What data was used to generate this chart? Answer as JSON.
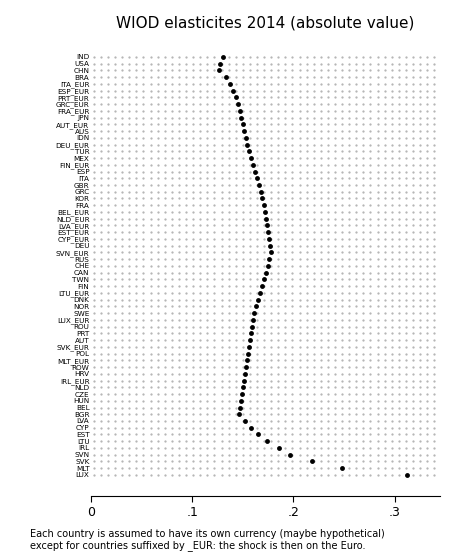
{
  "title": "WIOD elasticites 2014 (absolute value)",
  "footnote": "Each country is assumed to have its own currency (maybe hypothetical)\nexcept for countries suffixed by _EUR: the shock is then on the Euro.",
  "countries": [
    "IND",
    "USA",
    "CHN",
    "BRA",
    "ITA_EUR",
    "ESP_EUR",
    "PRT_EUR",
    "GRC_EUR",
    "FRA_EUR",
    "JPN",
    "AUT_EUR",
    "AUS",
    "IDN",
    "DEU_EUR",
    "TUR",
    "MEX",
    "FIN_EUR",
    "ESP",
    "ITA",
    "GBR",
    "GRC",
    "KOR",
    "FRA",
    "BEL_EUR",
    "NLD_EUR",
    "LVA_EUR",
    "EST_EUR",
    "CYP_EUR",
    "DEU",
    "SVN_EUR",
    "RUS",
    "CHE",
    "CAN",
    "TWN",
    "FIN",
    "LTU_EUR",
    "DNK",
    "NOR",
    "SWE",
    "LUX_EUR",
    "ROU",
    "PRT",
    "AUT",
    "SVK_EUR",
    "POL",
    "MLT_EUR",
    "ROW",
    "HRV",
    "IRL_EUR",
    "NLD",
    "CZE",
    "HUN",
    "BEL",
    "BGR",
    "LVA",
    "CYP",
    "EST",
    "LTU",
    "IRL",
    "SVN",
    "SVK",
    "MLT",
    "LUX"
  ],
  "values": [
    0.13,
    0.128,
    0.127,
    0.133,
    0.137,
    0.14,
    0.143,
    0.145,
    0.147,
    0.148,
    0.15,
    0.151,
    0.153,
    0.154,
    0.156,
    0.158,
    0.16,
    0.162,
    0.164,
    0.166,
    0.168,
    0.169,
    0.171,
    0.172,
    0.173,
    0.174,
    0.175,
    0.176,
    0.177,
    0.178,
    0.176,
    0.175,
    0.173,
    0.171,
    0.169,
    0.167,
    0.165,
    0.163,
    0.161,
    0.16,
    0.159,
    0.158,
    0.157,
    0.156,
    0.155,
    0.154,
    0.153,
    0.152,
    0.151,
    0.15,
    0.149,
    0.148,
    0.147,
    0.146,
    0.152,
    0.158,
    0.165,
    0.174,
    0.186,
    0.197,
    0.218,
    0.248,
    0.312
  ],
  "xlim_max": 0.345,
  "xticks": [
    0,
    0.1,
    0.2,
    0.3
  ],
  "xticklabels": [
    "0",
    ".1",
    ".2",
    ".3"
  ],
  "dot_color": "black",
  "dot_size": 3.5,
  "grid_dot_color": "#b0b0b0",
  "title_fontsize": 11,
  "label_fontsize": 5.2,
  "tick_fontsize": 9,
  "footnote_fontsize": 7
}
